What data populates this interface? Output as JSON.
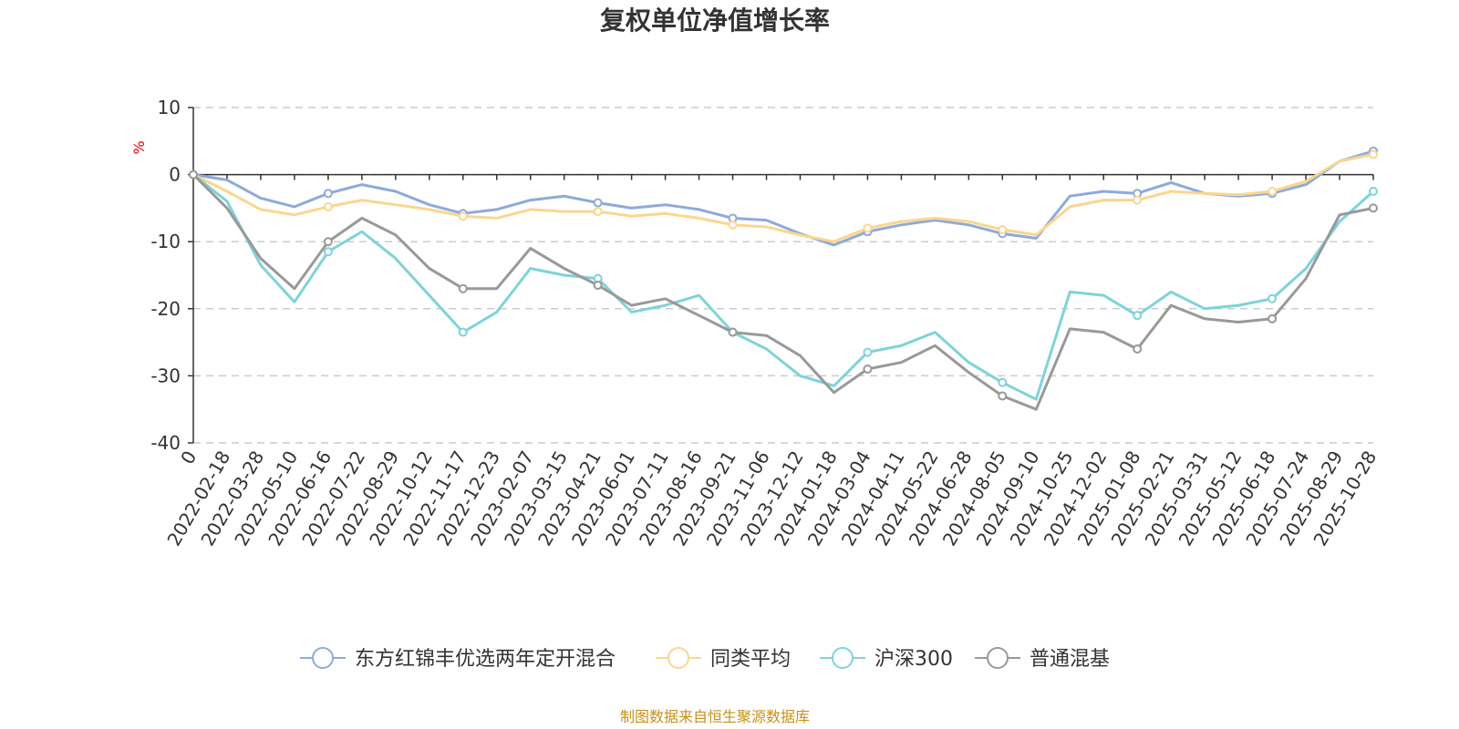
{
  "chart_data": {
    "type": "line",
    "title": "复权单位净值增长率",
    "ylabel": "%",
    "ylim": [
      -40,
      10
    ],
    "yticks": [
      "10",
      "0",
      "-10",
      "-20",
      "-30",
      "-40"
    ],
    "yticks_values": [
      10,
      0,
      -10,
      -20,
      -30,
      -40
    ],
    "x_ticks": [
      "0",
      "2022-02-18",
      "2022-03-28",
      "2022-05-10",
      "2022-06-16",
      "2022-07-22",
      "2022-08-29",
      "2022-10-12",
      "2022-11-17",
      "2022-12-23",
      "2023-02-07",
      "2023-03-15",
      "2023-04-21",
      "2023-06-01",
      "2023-07-11",
      "2023-08-16",
      "2023-09-21",
      "2023-11-06",
      "2023-12-12",
      "2024-01-18",
      "2024-03-04",
      "2024-04-11",
      "2024-05-22",
      "2024-06-28",
      "2024-08-05",
      "2024-09-10",
      "2024-10-25",
      "2024-12-02",
      "2025-01-08",
      "2025-02-21",
      "2025-03-31",
      "2025-05-12",
      "2025-06-18",
      "2025-07-24",
      "2025-08-29",
      "2025-10-28"
    ],
    "grid": true,
    "legend_position": "bottom",
    "series": [
      {
        "name": "东方红锦丰优选两年定开混合",
        "color": "#8eaadb",
        "values": [
          0,
          -0.8,
          -3.5,
          -4.8,
          -2.8,
          -1.5,
          -2.5,
          -4.5,
          -5.8,
          -5.2,
          -3.8,
          -3.2,
          -4.2,
          -5.0,
          -4.5,
          -5.2,
          -6.5,
          -6.8,
          -8.8,
          -10.5,
          -8.5,
          -7.5,
          -6.8,
          -7.5,
          -8.8,
          -9.5,
          -3.2,
          -2.5,
          -2.8,
          -1.2,
          -2.8,
          -3.2,
          -2.8,
          -1.5,
          2.0,
          3.5
        ]
      },
      {
        "name": "同类平均",
        "color": "#fad68f",
        "values": [
          0,
          -2.5,
          -5.2,
          -6.0,
          -4.8,
          -3.8,
          -4.5,
          -5.2,
          -6.2,
          -6.5,
          -5.2,
          -5.5,
          -5.5,
          -6.2,
          -5.8,
          -6.5,
          -7.5,
          -7.8,
          -9.0,
          -10.0,
          -8.0,
          -7.0,
          -6.5,
          -7.0,
          -8.2,
          -9.0,
          -4.8,
          -3.8,
          -3.8,
          -2.5,
          -2.8,
          -3.0,
          -2.5,
          -1.0,
          2.0,
          3.0
        ]
      },
      {
        "name": "沪深300",
        "color": "#7ed3da",
        "values": [
          0,
          -4.0,
          -13.5,
          -19.0,
          -11.5,
          -8.5,
          -12.5,
          -18.0,
          -23.5,
          -20.5,
          -14.0,
          -15.0,
          -15.5,
          -20.5,
          -19.5,
          -18.0,
          -23.5,
          -26.0,
          -30.0,
          -31.5,
          -26.5,
          -25.5,
          -23.5,
          -28.0,
          -31.0,
          -33.5,
          -17.5,
          -18.0,
          -21.0,
          -17.5,
          -20.0,
          -19.5,
          -18.5,
          -14.0,
          -7.0,
          -2.5
        ]
      },
      {
        "name": "普通混基",
        "color": "#999999",
        "values": [
          0,
          -5.0,
          -12.5,
          -17.0,
          -10.0,
          -6.5,
          -9.0,
          -14.0,
          -17.0,
          -17.0,
          -11.0,
          -14.0,
          -16.5,
          -19.5,
          -18.5,
          -21.0,
          -23.5,
          -24.0,
          -27.0,
          -32.5,
          -29.0,
          -28.0,
          -25.5,
          -29.5,
          -33.0,
          -35.0,
          -23.0,
          -23.5,
          -26.0,
          -19.5,
          -21.5,
          -22.0,
          -21.5,
          -15.5,
          -6.0,
          -5.0
        ]
      }
    ]
  },
  "source_text": "制图数据来自恒生聚源数据库"
}
